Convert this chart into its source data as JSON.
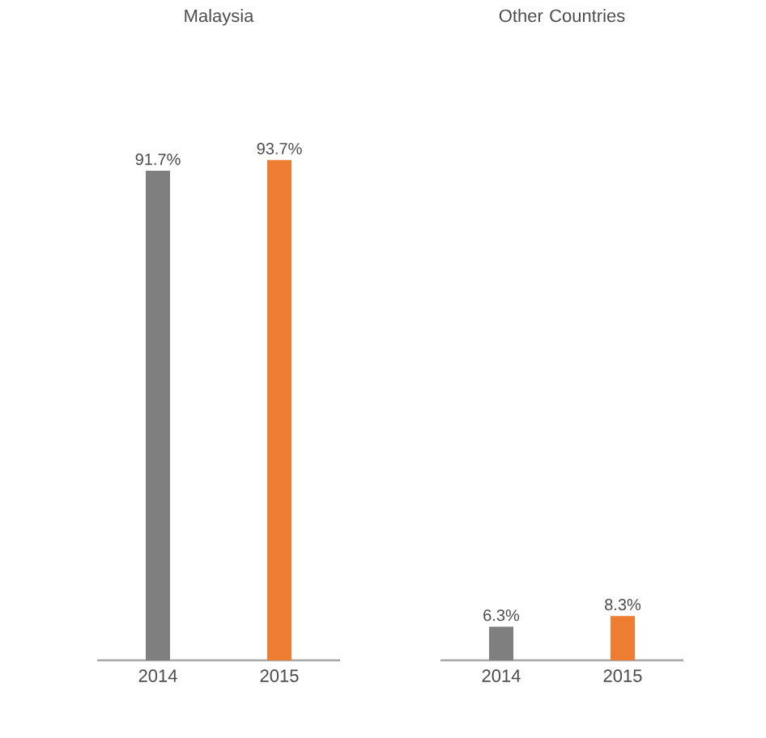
{
  "chart_data": [
    {
      "type": "bar",
      "title": "Malaysia",
      "categories": [
        "2014",
        "2015"
      ],
      "values": [
        91.7,
        93.7
      ],
      "colors": [
        "#7f7f7f",
        "#ed7d31"
      ],
      "value_labels": [
        "91.7%",
        "93.7%"
      ]
    },
    {
      "type": "bar",
      "title": "Other Countries",
      "categories": [
        "2014",
        "2015"
      ],
      "values": [
        6.3,
        8.3
      ],
      "colors": [
        "#7f7f7f",
        "#ed7d31"
      ],
      "value_labels": [
        "6.3%",
        "8.3%"
      ]
    }
  ]
}
